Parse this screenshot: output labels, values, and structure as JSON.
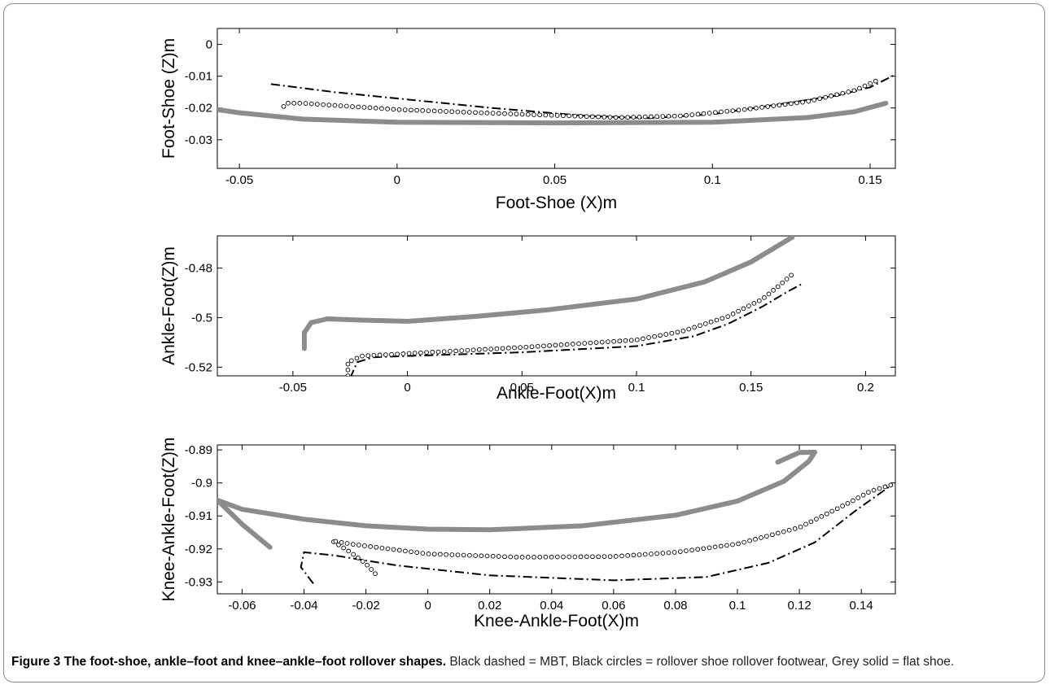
{
  "caption": {
    "label": "Figure 3",
    "title": "The foot-shoe, ankle–foot and knee–ankle–foot rollover shapes.",
    "text": "Black dashed = MBT, Black circles = rollover shoe rollover footwear, Grey solid = flat shoe."
  },
  "colors": {
    "flat_shoe": "#8c8c8c",
    "mbt": "#000000",
    "rollover": "#000000",
    "axis": "#000000"
  },
  "chart_data": [
    {
      "type": "line",
      "xlabel": "Foot-Shoe (X)m",
      "ylabel": "Foot-Shoe (Z)m",
      "xlim": [
        -0.057,
        0.158
      ],
      "ylim": [
        -0.039,
        0.005
      ],
      "xticks": [
        -0.05,
        0,
        0.05,
        0.1,
        0.15
      ],
      "xtick_labels": [
        "-0.05",
        "0",
        "0.05",
        "0.1",
        "0.15"
      ],
      "yticks": [
        0,
        -0.01,
        -0.02,
        -0.03
      ],
      "ytick_labels": [
        "0",
        "-0.01",
        "-0.02",
        "-0.03"
      ],
      "grid": false,
      "series": [
        {
          "style": "solid-grey",
          "points": [
            [
              -0.057,
              -0.0205
            ],
            [
              -0.05,
              -0.0215
            ],
            [
              -0.03,
              -0.0235
            ],
            [
              0,
              -0.0245
            ],
            [
              0.05,
              -0.0247
            ],
            [
              0.1,
              -0.0245
            ],
            [
              0.13,
              -0.023
            ],
            [
              0.145,
              -0.0212
            ],
            [
              0.155,
              -0.0185
            ]
          ]
        },
        {
          "style": "dash-dot",
          "points": [
            [
              -0.04,
              -0.0125
            ],
            [
              -0.02,
              -0.015
            ],
            [
              0,
              -0.017
            ],
            [
              0.03,
              -0.02
            ],
            [
              0.06,
              -0.0225
            ],
            [
              0.08,
              -0.0232
            ],
            [
              0.1,
              -0.022
            ],
            [
              0.12,
              -0.019
            ],
            [
              0.14,
              -0.016
            ],
            [
              0.15,
              -0.0135
            ],
            [
              0.158,
              -0.0095
            ]
          ]
        },
        {
          "style": "circles",
          "points": [
            [
              -0.036,
              -0.0195
            ],
            [
              -0.035,
              -0.0185
            ],
            [
              -0.03,
              -0.0185
            ],
            [
              0,
              -0.0205
            ],
            [
              0.04,
              -0.022
            ],
            [
              0.07,
              -0.023
            ],
            [
              0.09,
              -0.0225
            ],
            [
              0.11,
              -0.0205
            ],
            [
              0.13,
              -0.018
            ],
            [
              0.145,
              -0.0145
            ],
            [
              0.153,
              -0.011
            ]
          ]
        }
      ]
    },
    {
      "type": "line",
      "xlabel": "Ankle-Foot(X)m",
      "ylabel": "Ankle-Foot(Z)m",
      "xlim": [
        -0.083,
        0.213
      ],
      "ylim": [
        -0.5235,
        -0.467
      ],
      "xticks": [
        -0.05,
        0,
        0.05,
        0.1,
        0.15,
        0.2
      ],
      "xtick_labels": [
        "-0.05",
        "0",
        "0.05",
        "0.1",
        "0.15",
        "0.2"
      ],
      "yticks": [
        -0.48,
        -0.5,
        -0.52
      ],
      "ytick_labels": [
        "-0.48",
        "-0.5",
        "-0.52"
      ],
      "grid": false,
      "series": [
        {
          "style": "solid-grey",
          "points": [
            [
              -0.045,
              -0.5125
            ],
            [
              -0.045,
              -0.506
            ],
            [
              -0.042,
              -0.502
            ],
            [
              -0.035,
              -0.5005
            ],
            [
              -0.02,
              -0.501
            ],
            [
              0,
              -0.5015
            ],
            [
              0.03,
              -0.4995
            ],
            [
              0.06,
              -0.497
            ],
            [
              0.1,
              -0.4925
            ],
            [
              0.13,
              -0.4855
            ],
            [
              0.15,
              -0.4775
            ],
            [
              0.168,
              -0.4675
            ]
          ]
        },
        {
          "style": "dash-dot",
          "points": [
            [
              -0.025,
              -0.5245
            ],
            [
              -0.022,
              -0.518
            ],
            [
              -0.015,
              -0.516
            ],
            [
              0,
              -0.5155
            ],
            [
              0.05,
              -0.514
            ],
            [
              0.1,
              -0.5115
            ],
            [
              0.125,
              -0.5075
            ],
            [
              0.14,
              -0.5025
            ],
            [
              0.155,
              -0.4955
            ],
            [
              0.166,
              -0.4895
            ],
            [
              0.172,
              -0.4865
            ]
          ]
        },
        {
          "style": "circles",
          "points": [
            [
              -0.026,
              -0.5235
            ],
            [
              -0.026,
              -0.518
            ],
            [
              -0.02,
              -0.5155
            ],
            [
              0,
              -0.5145
            ],
            [
              0.05,
              -0.512
            ],
            [
              0.1,
              -0.509
            ],
            [
              0.12,
              -0.5055
            ],
            [
              0.14,
              -0.4995
            ],
            [
              0.155,
              -0.4925
            ],
            [
              0.163,
              -0.4865
            ],
            [
              0.168,
              -0.4825
            ]
          ]
        }
      ]
    },
    {
      "type": "line",
      "xlabel": "Knee-Ankle-Foot(X)m",
      "ylabel": "Knee-Ankle-Foot(Z)m",
      "xlim": [
        -0.068,
        0.151
      ],
      "ylim": [
        -0.9336,
        -0.8885
      ],
      "xticks": [
        -0.06,
        -0.04,
        -0.02,
        0,
        0.02,
        0.04,
        0.06,
        0.08,
        0.1,
        0.12,
        0.14
      ],
      "xtick_labels": [
        "-0.06",
        "-0.04",
        "-0.02",
        "0",
        "0.02",
        "0.04",
        "0.06",
        "0.08",
        "0.1",
        "0.12",
        "0.14"
      ],
      "yticks": [
        -0.89,
        -0.9,
        -0.91,
        -0.92,
        -0.93
      ],
      "ytick_labels": [
        "-0.89",
        "-0.9",
        "-0.91",
        "-0.92",
        "-0.93"
      ],
      "grid": false,
      "series": [
        {
          "style": "solid-grey",
          "points": [
            [
              -0.068,
              -0.9052
            ],
            [
              -0.06,
              -0.908
            ],
            [
              -0.04,
              -0.911
            ],
            [
              -0.02,
              -0.913
            ],
            [
              0,
              -0.914
            ],
            [
              0.02,
              -0.9142
            ],
            [
              0.05,
              -0.913
            ],
            [
              0.08,
              -0.9098
            ],
            [
              0.1,
              -0.9055
            ],
            [
              0.115,
              -0.8995
            ],
            [
              0.123,
              -0.8935
            ],
            [
              0.125,
              -0.8907
            ],
            [
              0.12,
              -0.8908
            ],
            [
              0.113,
              -0.8937
            ]
          ]
        },
        {
          "style": "solid-grey",
          "points": [
            [
              -0.068,
              -0.9052
            ],
            [
              -0.06,
              -0.9125
            ],
            [
              -0.051,
              -0.9195
            ]
          ]
        },
        {
          "style": "dash-dot",
          "points": [
            [
              -0.037,
              -0.9305
            ],
            [
              -0.041,
              -0.9255
            ],
            [
              -0.04,
              -0.921
            ],
            [
              -0.03,
              -0.922
            ],
            [
              -0.01,
              -0.925
            ],
            [
              0.02,
              -0.928
            ],
            [
              0.06,
              -0.9295
            ],
            [
              0.09,
              -0.9285
            ],
            [
              0.11,
              -0.9242
            ],
            [
              0.125,
              -0.918
            ],
            [
              0.138,
              -0.9085
            ],
            [
              0.147,
              -0.9025
            ],
            [
              0.15,
              -0.9005
            ]
          ]
        },
        {
          "style": "circles",
          "points": [
            [
              -0.017,
              -0.9275
            ],
            [
              -0.02,
              -0.9245
            ],
            [
              -0.025,
              -0.921
            ],
            [
              -0.031,
              -0.9175
            ],
            [
              -0.025,
              -0.9185
            ],
            [
              0,
              -0.9215
            ],
            [
              0.03,
              -0.9225
            ],
            [
              0.06,
              -0.9223
            ],
            [
              0.08,
              -0.921
            ],
            [
              0.1,
              -0.9185
            ],
            [
              0.12,
              -0.9135
            ],
            [
              0.135,
              -0.9065
            ],
            [
              0.143,
              -0.9025
            ],
            [
              0.15,
              -0.9005
            ]
          ]
        }
      ]
    }
  ]
}
